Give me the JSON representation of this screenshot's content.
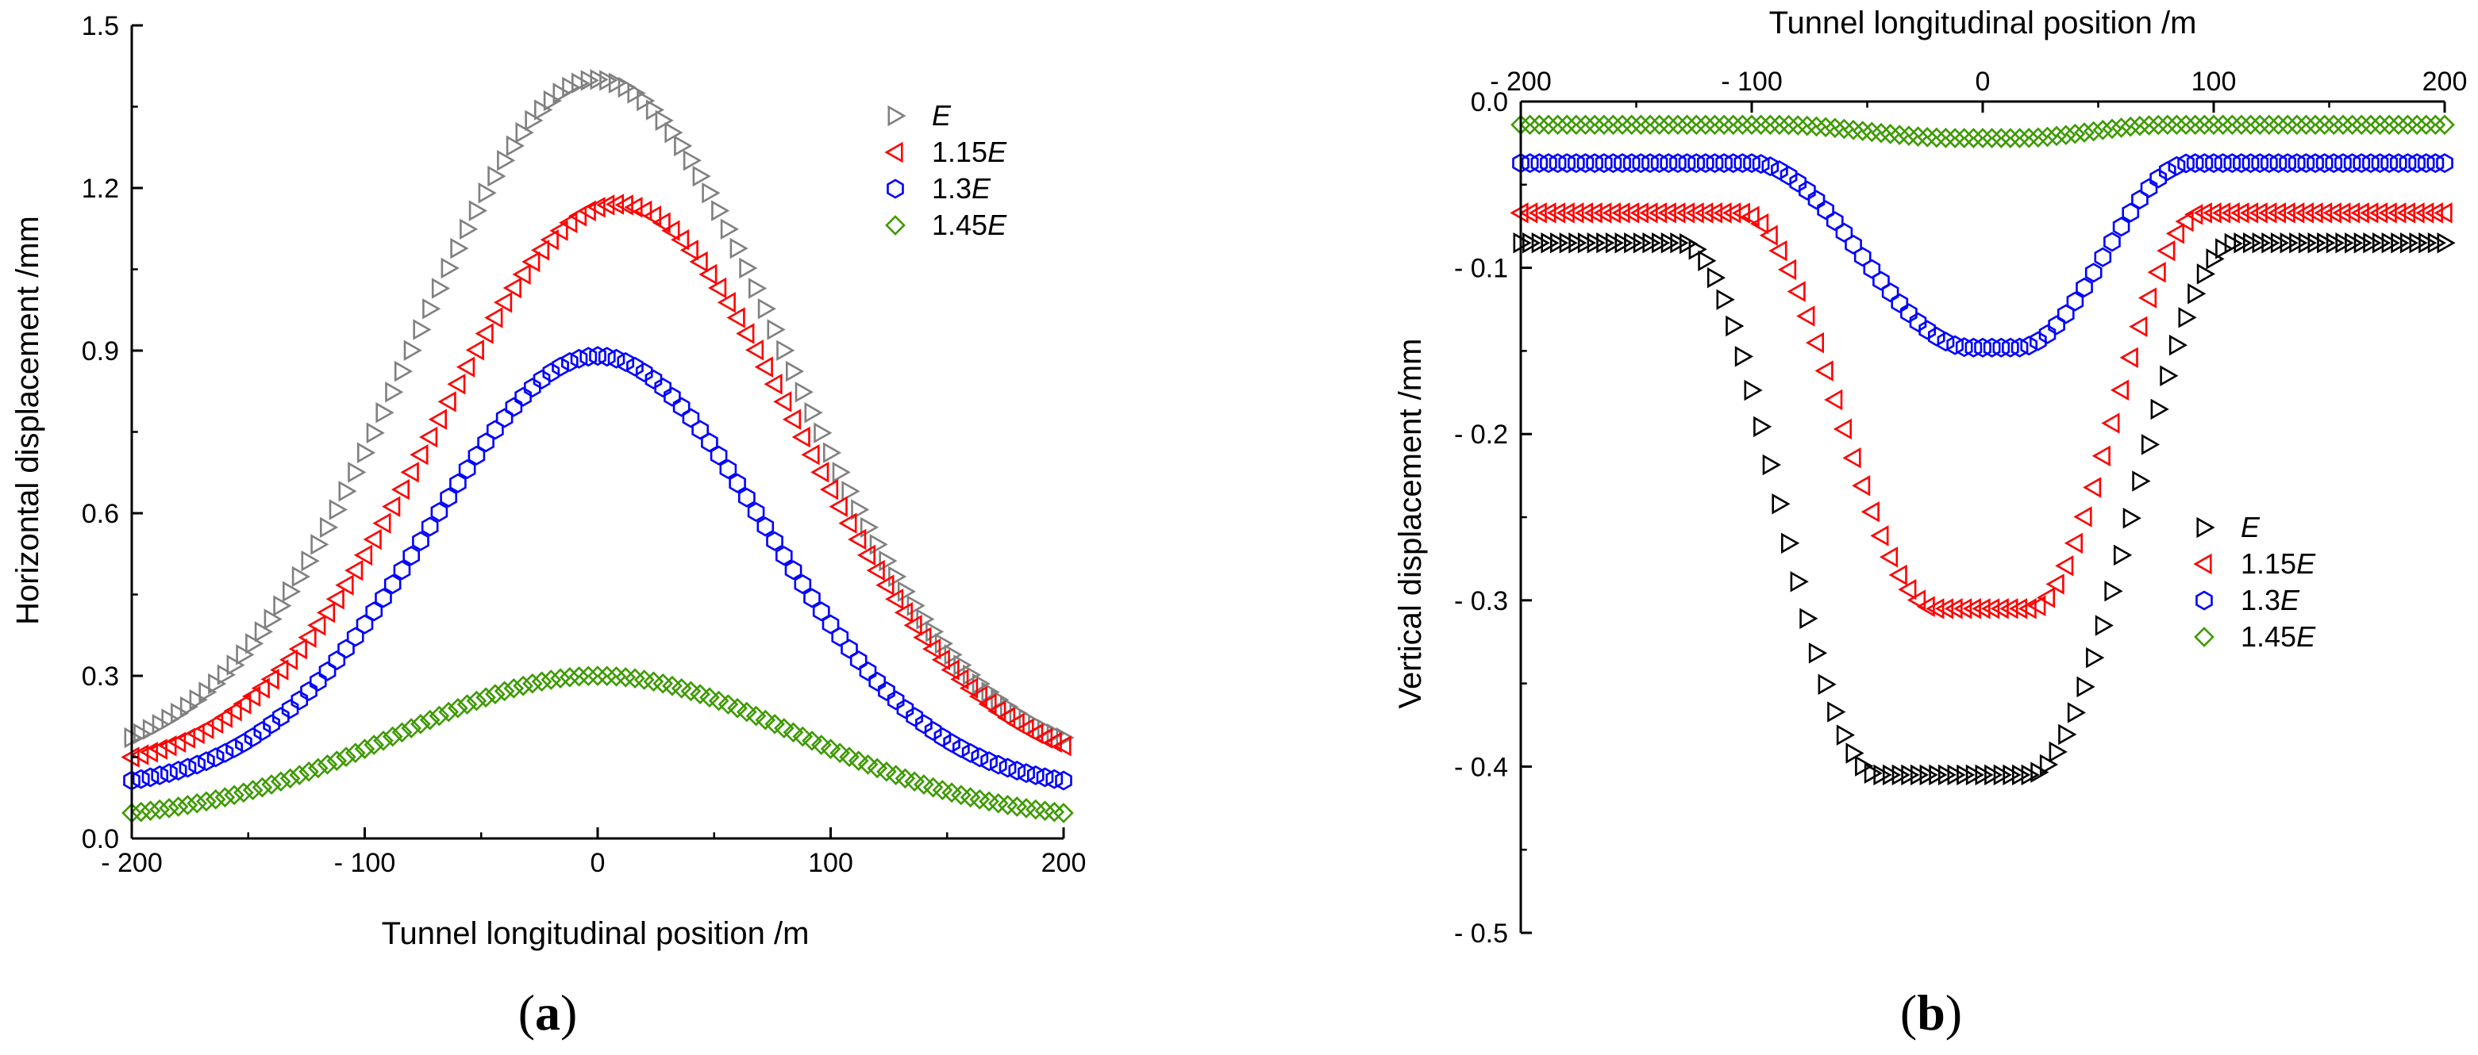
{
  "chart_data": [
    {
      "type": "scatter",
      "panel_label": {
        "open": "(",
        "letter": "a",
        "close": ")"
      },
      "xlabel": "Tunnel longitudinal position /m",
      "ylabel": "Horizontal displacement /mm",
      "xlim": [
        -200,
        200
      ],
      "ylim": [
        0,
        1.5
      ],
      "xticks": [
        -200,
        -100,
        0,
        100,
        200
      ],
      "xtick_labels": [
        "- 200",
        "- 100",
        "0",
        "100",
        "200"
      ],
      "yticks": [
        0,
        0.3,
        0.6,
        0.9,
        1.2,
        1.5
      ],
      "ytick_labels": [
        "0.0",
        "0.3",
        "0.6",
        "0.9",
        "1.2",
        "1.5"
      ],
      "x_axis_position": "bottom",
      "legend_position": "top-right",
      "series": [
        {
          "name": "E",
          "legend_prefix": "",
          "legend_italic": "E",
          "marker": "triangle-right",
          "color": "#808080",
          "curve": "gauss",
          "center": 0,
          "baseline": 0.13,
          "peak": 1.4,
          "sigma": 80
        },
        {
          "name": "1.15E",
          "legend_prefix": "1.15",
          "legend_italic": "E",
          "marker": "triangle-left",
          "color": "#ff0000",
          "curve": "gauss",
          "center": 8,
          "baseline": 0.12,
          "peak": 1.17,
          "sigma": 78
        },
        {
          "name": "1.3E",
          "legend_prefix": "1.3",
          "legend_italic": "E",
          "marker": "hexagon",
          "color": "#0000ff",
          "curve": "gauss",
          "center": 0,
          "baseline": 0.09,
          "peak": 0.89,
          "sigma": 72
        },
        {
          "name": "1.45E",
          "legend_prefix": "1.45",
          "legend_italic": "E",
          "marker": "diamond",
          "color": "#3d9a00",
          "curve": "gauss",
          "center": 0,
          "baseline": 0.03,
          "peak": 0.3,
          "sigma": 85
        }
      ]
    },
    {
      "type": "scatter",
      "panel_label": {
        "open": "(",
        "letter": "b",
        "close": ")"
      },
      "xlabel": "Tunnel longitudinal position /m",
      "ylabel": "Vertical displacement /mm",
      "xlim": [
        -200,
        200
      ],
      "ylim": [
        -0.5,
        0
      ],
      "xticks": [
        -200,
        -100,
        0,
        100,
        200
      ],
      "xtick_labels": [
        "- 200",
        "- 100",
        "0",
        "100",
        "200"
      ],
      "yticks": [
        0,
        -0.1,
        -0.2,
        -0.3,
        -0.4,
        -0.5
      ],
      "ytick_labels": [
        "0.0",
        "- 0.1",
        "- 0.2",
        "- 0.3",
        "- 0.4",
        "- 0.5"
      ],
      "x_axis_position": "top",
      "legend_position": "center-right",
      "series": [
        {
          "name": "E",
          "legend_prefix": "",
          "legend_italic": "E",
          "marker": "triangle-right",
          "color": "#000000",
          "curve": "trough",
          "plateau": -0.085,
          "min": -0.405,
          "left_edge": -130,
          "right_edge": 110,
          "left_flat": -45,
          "right_flat": 20,
          "flat_half": 28
        },
        {
          "name": "1.15E",
          "legend_prefix": "1.15",
          "legend_italic": "E",
          "marker": "triangle-left",
          "color": "#ff0000",
          "curve": "trough",
          "plateau": -0.067,
          "min": -0.305,
          "left_edge": -105,
          "right_edge": 95,
          "left_flat": -20,
          "right_flat": 20,
          "flat_half": 22
        },
        {
          "name": "1.3E",
          "legend_prefix": "1.3",
          "legend_italic": "E",
          "marker": "hexagon",
          "color": "#0000ff",
          "curve": "trough",
          "plateau": -0.037,
          "min": -0.148,
          "left_edge": -100,
          "right_edge": 90,
          "left_flat": -5,
          "right_flat": 15,
          "flat_half": 18
        },
        {
          "name": "1.45E",
          "legend_prefix": "1.45",
          "legend_italic": "E",
          "marker": "diamond",
          "color": "#3d9a00",
          "curve": "trough",
          "plateau": -0.014,
          "min": -0.022,
          "left_edge": -90,
          "right_edge": 80,
          "left_flat": -10,
          "right_flat": 15,
          "flat_half": 20
        }
      ]
    }
  ]
}
